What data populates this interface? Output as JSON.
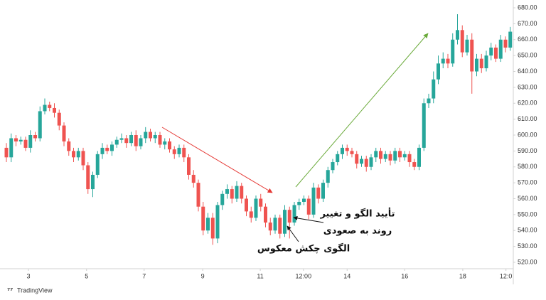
{
  "chart_data": {
    "type": "candlestick",
    "up_color": "#26a69a",
    "down_color": "#ef5350",
    "open": [
      592,
      586,
      598,
      596,
      597,
      592,
      600,
      598,
      615,
      619,
      617,
      614,
      606,
      596,
      590,
      586,
      590,
      581,
      566,
      575,
      588,
      592,
      590,
      594,
      597,
      598,
      595,
      600,
      593,
      598,
      602,
      598,
      600,
      594,
      596,
      591,
      588,
      592,
      586,
      575,
      570,
      555,
      540,
      548,
      535,
      556,
      563,
      566,
      560,
      568,
      560,
      552,
      548,
      560,
      555,
      545,
      540,
      548,
      538,
      553,
      545,
      556,
      558,
      560,
      550,
      567,
      560,
      570,
      578,
      583,
      588,
      592,
      590,
      588,
      582,
      585,
      580,
      586,
      590,
      585,
      588,
      584,
      590,
      586,
      588,
      583,
      580,
      592,
      620,
      623,
      635,
      645,
      648,
      645,
      660,
      666,
      652,
      660,
      640,
      648,
      642,
      650,
      655,
      648,
      660,
      655
    ],
    "high": [
      595,
      601,
      600,
      599,
      599,
      603,
      602,
      618,
      623,
      621,
      620,
      616,
      608,
      598,
      592,
      592,
      592,
      583,
      577,
      590,
      595,
      594,
      596,
      599,
      601,
      600,
      602,
      603,
      600,
      605,
      604,
      602,
      602,
      598,
      598,
      593,
      594,
      594,
      588,
      578,
      572,
      558,
      551,
      551,
      558,
      565,
      569,
      568,
      571,
      570,
      562,
      555,
      562,
      563,
      557,
      548,
      550,
      550,
      556,
      555,
      558,
      560,
      562,
      562,
      570,
      569,
      572,
      580,
      585,
      590,
      594,
      594,
      592,
      590,
      587,
      587,
      588,
      592,
      592,
      590,
      590,
      592,
      592,
      590,
      590,
      585,
      594,
      623,
      626,
      640,
      650,
      652,
      651,
      664,
      676,
      669,
      663,
      664,
      651,
      651,
      653,
      658,
      657,
      663,
      662,
      668
    ],
    "low": [
      583,
      583,
      593,
      594,
      590,
      589,
      596,
      596,
      613,
      615,
      611,
      603,
      593,
      587,
      583,
      584,
      578,
      563,
      561,
      573,
      585,
      588,
      587,
      592,
      595,
      592,
      593,
      590,
      591,
      595,
      596,
      595,
      592,
      591,
      589,
      585,
      586,
      583,
      572,
      567,
      552,
      537,
      538,
      531,
      532,
      553,
      560,
      557,
      558,
      557,
      549,
      545,
      546,
      552,
      542,
      537,
      538,
      535,
      536,
      535,
      543,
      553,
      556,
      547,
      548,
      557,
      558,
      567,
      576,
      581,
      585,
      587,
      586,
      579,
      580,
      577,
      578,
      583,
      582,
      583,
      581,
      582,
      583,
      584,
      580,
      578,
      578,
      590,
      617,
      620,
      632,
      642,
      642,
      643,
      657,
      649,
      650,
      626,
      637,
      639,
      640,
      647,
      646,
      646,
      652,
      653
    ],
    "close": [
      586,
      598,
      596,
      597,
      592,
      600,
      598,
      615,
      619,
      617,
      614,
      606,
      596,
      590,
      586,
      590,
      581,
      566,
      575,
      588,
      592,
      590,
      594,
      597,
      598,
      595,
      600,
      593,
      598,
      602,
      598,
      600,
      594,
      596,
      591,
      588,
      592,
      586,
      575,
      570,
      555,
      540,
      548,
      535,
      556,
      563,
      566,
      560,
      568,
      560,
      552,
      548,
      560,
      555,
      545,
      540,
      548,
      538,
      553,
      545,
      556,
      558,
      560,
      550,
      567,
      560,
      570,
      578,
      583,
      588,
      592,
      590,
      588,
      582,
      585,
      580,
      586,
      590,
      585,
      588,
      584,
      590,
      586,
      588,
      583,
      580,
      592,
      620,
      623,
      635,
      645,
      648,
      645,
      660,
      666,
      652,
      660,
      640,
      648,
      642,
      650,
      655,
      648,
      660,
      655,
      665
    ],
    "xticks": [
      {
        "value": 4.6,
        "label": "3"
      },
      {
        "value": 16.7,
        "label": "5"
      },
      {
        "value": 28.7,
        "label": "7"
      },
      {
        "value": 40.9,
        "label": "9"
      },
      {
        "value": 52.9,
        "label": "11"
      },
      {
        "value": 61.9,
        "label": "12:00"
      },
      {
        "value": 71,
        "label": "14"
      },
      {
        "value": 83,
        "label": "16"
      },
      {
        "value": 95.1,
        "label": "18"
      },
      {
        "value": 104.1,
        "label": "12:0"
      }
    ],
    "ylim": [
      520,
      680
    ],
    "yticks": [
      {
        "value": 680,
        "label": "680.00"
      },
      {
        "value": 670,
        "label": "670.00"
      },
      {
        "value": 660,
        "label": "660.00"
      },
      {
        "value": 650,
        "label": "650.00"
      },
      {
        "value": 640,
        "label": "640.00"
      },
      {
        "value": 630,
        "label": "630.00"
      },
      {
        "value": 620,
        "label": "620.00"
      },
      {
        "value": 610,
        "label": "610.00"
      },
      {
        "value": 600,
        "label": "600.00"
      },
      {
        "value": 590,
        "label": "590.00"
      },
      {
        "value": 580,
        "label": "580.00"
      },
      {
        "value": 570,
        "label": "570.00"
      },
      {
        "value": 560,
        "label": "560.00"
      },
      {
        "value": 550,
        "label": "550.00"
      },
      {
        "value": 540,
        "label": "540.00"
      },
      {
        "value": 530,
        "label": "530.00"
      },
      {
        "value": 520,
        "label": "520.00"
      }
    ],
    "annotations": [
      "تأیید الگو و تغییر",
      "روند به صعودی",
      "الگوی چکش معکوس"
    ],
    "watermark": "TradingView"
  }
}
